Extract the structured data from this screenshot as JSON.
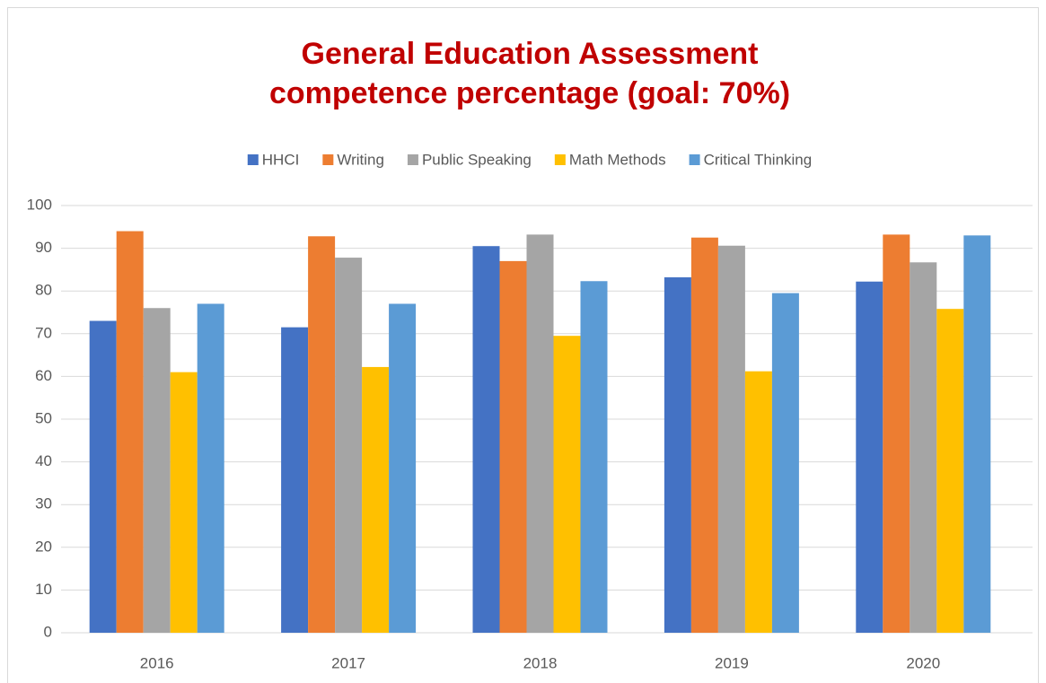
{
  "chart_data": {
    "type": "bar",
    "title": [
      "General Education Assessment",
      "competence percentage (goal: 70%)"
    ],
    "categories": [
      "2016",
      "2017",
      "2018",
      "2019",
      "2020"
    ],
    "series": [
      {
        "name": "HHCI",
        "color": "#4472c4",
        "values": [
          73,
          71.5,
          90.5,
          83.2,
          82.2
        ]
      },
      {
        "name": "Writing",
        "color": "#ed7d31",
        "values": [
          94,
          92.8,
          87,
          92.5,
          93.2
        ]
      },
      {
        "name": "Public Speaking",
        "color": "#a5a5a5",
        "values": [
          76,
          87.8,
          93.2,
          90.6,
          86.7
        ]
      },
      {
        "name": "Math Methods",
        "color": "#ffc000",
        "values": [
          61,
          62.2,
          69.5,
          61.2,
          75.8
        ]
      },
      {
        "name": "Critical Thinking",
        "color": "#5b9bd5",
        "values": [
          77,
          77,
          82.3,
          79.5,
          93
        ]
      }
    ],
    "ylim": [
      0,
      100
    ],
    "yticks": [
      0,
      10,
      20,
      30,
      40,
      50,
      60,
      70,
      80,
      90,
      100
    ],
    "grid": true,
    "legend": "top"
  }
}
